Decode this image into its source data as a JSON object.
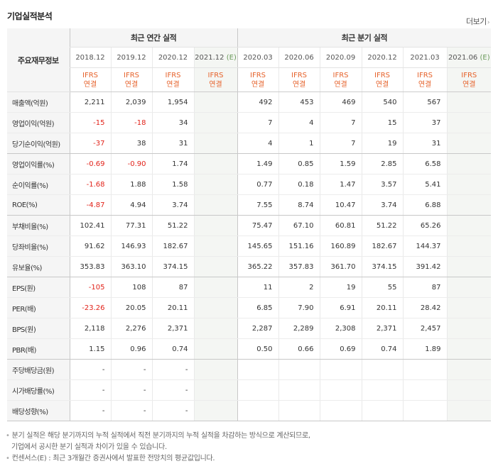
{
  "header": {
    "title": "기업실적분석",
    "more": "더보기"
  },
  "table": {
    "label_header": "주요재무정보",
    "group_annual": "최근 연간 실적",
    "group_quarter": "최근 분기 실적",
    "periods": [
      "2018.12",
      "2019.12",
      "2020.12",
      "2021.12",
      "2020.03",
      "2020.06",
      "2020.09",
      "2020.12",
      "2021.03",
      "2021.06"
    ],
    "estimate_mark": "(E)",
    "ifrs": "IFRS",
    "consolidated": "연결",
    "rows": [
      {
        "label": "매출액(억원)",
        "values": [
          "2,211",
          "2,039",
          "1,954",
          "",
          "492",
          "453",
          "469",
          "540",
          "567",
          ""
        ]
      },
      {
        "label": "영업이익(억원)",
        "values": [
          "-15",
          "-18",
          "34",
          "",
          "7",
          "4",
          "7",
          "15",
          "37",
          ""
        ]
      },
      {
        "label": "당기순이익(억원)",
        "values": [
          "-37",
          "38",
          "31",
          "",
          "4",
          "1",
          "7",
          "19",
          "31",
          ""
        ]
      },
      {
        "label": "영업이익률(%)",
        "values": [
          "-0.69",
          "-0.90",
          "1.74",
          "",
          "1.49",
          "0.85",
          "1.59",
          "2.85",
          "6.58",
          ""
        ]
      },
      {
        "label": "순이익률(%)",
        "values": [
          "-1.68",
          "1.88",
          "1.58",
          "",
          "0.77",
          "0.18",
          "1.47",
          "3.57",
          "5.41",
          ""
        ]
      },
      {
        "label": "ROE(%)",
        "values": [
          "-4.87",
          "4.94",
          "3.74",
          "",
          "7.55",
          "8.74",
          "10.47",
          "3.74",
          "6.88",
          ""
        ]
      },
      {
        "label": "부채비율(%)",
        "values": [
          "102.41",
          "77.31",
          "51.22",
          "",
          "75.47",
          "67.10",
          "60.81",
          "51.22",
          "65.26",
          ""
        ]
      },
      {
        "label": "당좌비율(%)",
        "values": [
          "91.62",
          "146.93",
          "182.67",
          "",
          "145.65",
          "151.16",
          "160.89",
          "182.67",
          "144.37",
          ""
        ]
      },
      {
        "label": "유보율(%)",
        "values": [
          "353.83",
          "363.10",
          "374.15",
          "",
          "365.22",
          "357.83",
          "361.70",
          "374.15",
          "391.42",
          ""
        ]
      },
      {
        "label": "EPS(원)",
        "values": [
          "-105",
          "108",
          "87",
          "",
          "11",
          "2",
          "19",
          "55",
          "87",
          ""
        ]
      },
      {
        "label": "PER(배)",
        "values": [
          "-23.26",
          "20.05",
          "20.11",
          "",
          "6.85",
          "7.90",
          "6.91",
          "20.11",
          "28.42",
          ""
        ]
      },
      {
        "label": "BPS(원)",
        "values": [
          "2,118",
          "2,276",
          "2,371",
          "",
          "2,287",
          "2,289",
          "2,308",
          "2,371",
          "2,457",
          ""
        ]
      },
      {
        "label": "PBR(배)",
        "values": [
          "1.15",
          "0.96",
          "0.74",
          "",
          "0.50",
          "0.66",
          "0.69",
          "0.74",
          "1.89",
          ""
        ]
      },
      {
        "label": "주당배당금(원)",
        "values": [
          "-",
          "-",
          "-",
          "",
          "",
          "",
          "",
          "",
          "",
          ""
        ]
      },
      {
        "label": "시가배당률(%)",
        "values": [
          "-",
          "-",
          "-",
          "",
          "",
          "",
          "",
          "",
          "",
          ""
        ]
      },
      {
        "label": "배당성향(%)",
        "values": [
          "-",
          "-",
          "-",
          "",
          "",
          "",
          "",
          "",
          "",
          ""
        ]
      }
    ]
  },
  "notes": {
    "line1": "분기 실적은 해당 분기까지의 누적 실적에서 직전 분기까지의 누적 실적을 차감하는 방식으로 계산되므로,",
    "line2": "기업에서 공시한 분기 실적과 차이가 있을 수 있습니다.",
    "line3": "컨센서스(E) : 최근 3개월간 증권사에서 발표한 전망치의 평균값입니다."
  },
  "colors": {
    "negative": "#e2231a",
    "ifrs": "#e6622b",
    "estimate": "#6a9a5a"
  }
}
